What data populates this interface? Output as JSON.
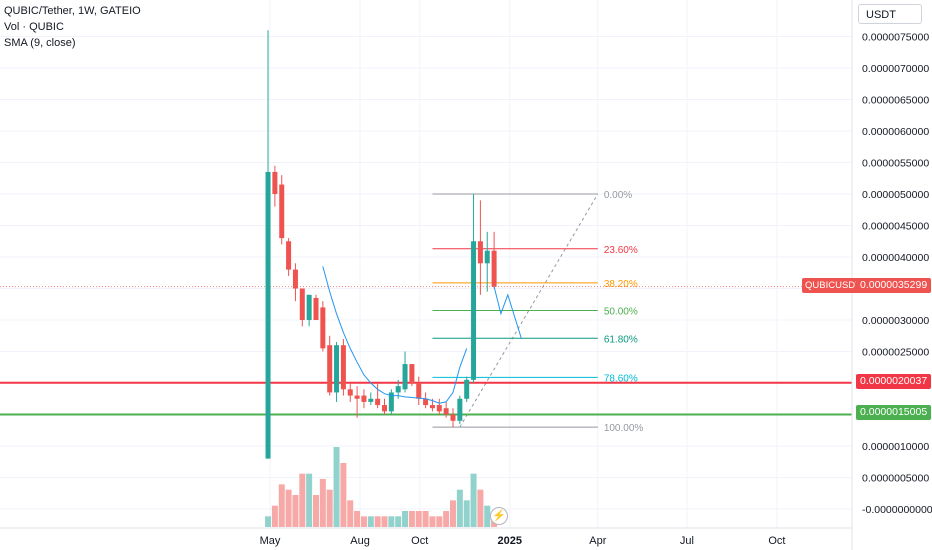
{
  "legend": {
    "symbol": "QUBIC/Tether, 1W, GATEIO",
    "volume": "Vol · QUBIC",
    "sma": "SMA (9, close)"
  },
  "currency": "USDT",
  "symbol_tag": "QUBICUSDT",
  "price_tags": {
    "last": "0.0000035299",
    "red_line": "0.0000020037",
    "green_line": "0.0000015005"
  },
  "flash_icon": "lightning-icon",
  "colors": {
    "up": "#26a69a",
    "down": "#ef5350",
    "red_line": "#f23645",
    "green_line": "#4caf50"
  },
  "chart_data": {
    "type": "candlestick",
    "y_axis": {
      "ticks": [
        {
          "value": 7.5e-06,
          "label": "0.0000075000"
        },
        {
          "value": 7e-06,
          "label": "0.0000070000"
        },
        {
          "value": 6.5e-06,
          "label": "0.0000065000"
        },
        {
          "value": 6e-06,
          "label": "0.0000060000"
        },
        {
          "value": 5.5e-06,
          "label": "0.0000055000"
        },
        {
          "value": 5e-06,
          "label": "0.0000050000"
        },
        {
          "value": 4.5e-06,
          "label": "0.0000045000"
        },
        {
          "value": 4e-06,
          "label": "0.0000040000"
        },
        {
          "value": 3.5e-06,
          "label": "0.0000035000"
        },
        {
          "value": 3e-06,
          "label": "0.0000030000"
        },
        {
          "value": 2.5e-06,
          "label": "0.0000025000"
        },
        {
          "value": 2e-06,
          "label": "0.0000020000"
        },
        {
          "value": 1.5e-06,
          "label": "0.0000015000"
        },
        {
          "value": 1e-06,
          "label": "0.0000010000"
        },
        {
          "value": 5e-07,
          "label": "0.0000005000"
        },
        {
          "value": 0.0,
          "label": "-0.0000000000"
        }
      ]
    },
    "x_axis": {
      "ticks": [
        {
          "date": "2024-05-01",
          "label": "May",
          "bold": false
        },
        {
          "date": "2024-08-01",
          "label": "Aug",
          "bold": false
        },
        {
          "date": "2024-10-01",
          "label": "Oct",
          "bold": false
        },
        {
          "date": "2025-01-01",
          "label": "2025",
          "bold": true
        },
        {
          "date": "2025-04-01",
          "label": "Apr",
          "bold": false
        },
        {
          "date": "2025-07-01",
          "label": "Jul",
          "bold": false
        },
        {
          "date": "2025-10-01",
          "label": "Oct",
          "bold": false
        }
      ]
    },
    "candles": [
      {
        "date": "2024-04-29",
        "o": 8e-07,
        "h": 7.6e-06,
        "l": 8e-07,
        "c": 5.35e-06,
        "v": 2e-07
      },
      {
        "date": "2024-05-06",
        "o": 5.35e-06,
        "h": 5.45e-06,
        "l": 4.8e-06,
        "c": 5e-06,
        "v": 4e-07
      },
      {
        "date": "2024-05-13",
        "o": 5.15e-06,
        "h": 5.3e-06,
        "l": 4.2e-06,
        "c": 4.3e-06,
        "v": 8e-07
      },
      {
        "date": "2024-05-20",
        "o": 4.25e-06,
        "h": 4.3e-06,
        "l": 3.7e-06,
        "c": 3.8e-06,
        "v": 7e-07
      },
      {
        "date": "2024-05-27",
        "o": 3.8e-06,
        "h": 3.9e-06,
        "l": 3.3e-06,
        "c": 3.5e-06,
        "v": 6e-07
      },
      {
        "date": "2024-06-03",
        "o": 3.5e-06,
        "h": 3.5e-06,
        "l": 2.9e-06,
        "c": 3e-06,
        "v": 1e-06
      },
      {
        "date": "2024-06-10",
        "o": 3e-06,
        "h": 3.4e-06,
        "l": 2.9e-06,
        "c": 3.4e-06,
        "v": 1e-06
      },
      {
        "date": "2024-06-17",
        "o": 3.35e-06,
        "h": 3.4e-06,
        "l": 3e-06,
        "c": 3e-06,
        "v": 6e-07
      },
      {
        "date": "2024-06-24",
        "o": 3.2e-06,
        "h": 3.3e-06,
        "l": 2.5e-06,
        "c": 2.55e-06,
        "v": 9e-07
      },
      {
        "date": "2024-07-01",
        "o": 2.6e-06,
        "h": 2.75e-06,
        "l": 1.8e-06,
        "c": 1.85e-06,
        "v": 7e-07
      },
      {
        "date": "2024-07-08",
        "o": 1.85e-06,
        "h": 2.65e-06,
        "l": 1.7e-06,
        "c": 2.6e-06,
        "v": 1.5e-06
      },
      {
        "date": "2024-07-15",
        "o": 2.6e-06,
        "h": 2.7e-06,
        "l": 1.8e-06,
        "c": 1.9e-06,
        "v": 1.2e-06
      },
      {
        "date": "2024-07-22",
        "o": 1.9e-06,
        "h": 2e-06,
        "l": 1.7e-06,
        "c": 1.8e-06,
        "v": 5e-07
      },
      {
        "date": "2024-07-29",
        "o": 1.8e-06,
        "h": 1.95e-06,
        "l": 1.45e-06,
        "c": 1.75e-06,
        "v": 3e-07
      },
      {
        "date": "2024-08-05",
        "o": 1.8e-06,
        "h": 1.9e-06,
        "l": 1.6e-06,
        "c": 1.7e-06,
        "v": 2e-07
      },
      {
        "date": "2024-08-12",
        "o": 1.7e-06,
        "h": 1.85e-06,
        "l": 1.65e-06,
        "c": 1.75e-06,
        "v": 2e-07
      },
      {
        "date": "2024-08-19",
        "o": 1.75e-06,
        "h": 2e-06,
        "l": 1.6e-06,
        "c": 1.65e-06,
        "v": 2e-07
      },
      {
        "date": "2024-08-26",
        "o": 1.65e-06,
        "h": 1.75e-06,
        "l": 1.5e-06,
        "c": 1.55e-06,
        "v": 2e-07
      },
      {
        "date": "2024-09-02",
        "o": 1.55e-06,
        "h": 1.9e-06,
        "l": 1.5e-06,
        "c": 1.85e-06,
        "v": 2e-07
      },
      {
        "date": "2024-09-09",
        "o": 1.85e-06,
        "h": 2.05e-06,
        "l": 1.75e-06,
        "c": 1.95e-06,
        "v": 2e-07
      },
      {
        "date": "2024-09-16",
        "o": 1.9e-06,
        "h": 2.5e-06,
        "l": 1.85e-06,
        "c": 2.3e-06,
        "v": 3e-07
      },
      {
        "date": "2024-09-23",
        "o": 2.3e-06,
        "h": 2.3e-06,
        "l": 1.95e-06,
        "c": 2e-06,
        "v": 3e-07
      },
      {
        "date": "2024-09-30",
        "o": 2e-06,
        "h": 2.1e-06,
        "l": 1.65e-06,
        "c": 1.75e-06,
        "v": 3e-07
      },
      {
        "date": "2024-10-07",
        "o": 1.75e-06,
        "h": 1.85e-06,
        "l": 1.6e-06,
        "c": 1.65e-06,
        "v": 3e-07
      },
      {
        "date": "2024-10-14",
        "o": 1.65e-06,
        "h": 1.75e-06,
        "l": 1.55e-06,
        "c": 1.6e-06,
        "v": 2e-07
      },
      {
        "date": "2024-10-21",
        "o": 1.65e-06,
        "h": 1.75e-06,
        "l": 1.5e-06,
        "c": 1.55e-06,
        "v": 2e-07
      },
      {
        "date": "2024-10-28",
        "o": 1.6e-06,
        "h": 1.7e-06,
        "l": 1.45e-06,
        "c": 1.5e-06,
        "v": 3e-07
      },
      {
        "date": "2024-11-04",
        "o": 1.5e-06,
        "h": 1.6e-06,
        "l": 1.3e-06,
        "c": 1.4e-06,
        "v": 5e-07
      },
      {
        "date": "2024-11-11",
        "o": 1.4e-06,
        "h": 1.8e-06,
        "l": 1.35e-06,
        "c": 1.75e-06,
        "v": 7e-07
      },
      {
        "date": "2024-11-18",
        "o": 1.75e-06,
        "h": 2.1e-06,
        "l": 1.7e-06,
        "c": 2.05e-06,
        "v": 5e-07
      },
      {
        "date": "2024-11-25",
        "o": 2.05e-06,
        "h": 5e-06,
        "l": 2e-06,
        "c": 4.25e-06,
        "v": 1e-06
      },
      {
        "date": "2024-12-02",
        "o": 4.25e-06,
        "h": 4.9e-06,
        "l": 3.4e-06,
        "c": 3.9e-06,
        "v": 7e-07
      },
      {
        "date": "2024-12-09",
        "o": 3.9e-06,
        "h": 4.4e-06,
        "l": 3.45e-06,
        "c": 4.1e-06,
        "v": 4e-07
      },
      {
        "date": "2024-12-16",
        "o": 4.1e-06,
        "h": 4.4e-06,
        "l": 3.5e-06,
        "c": 3.53e-06,
        "v": 2e-07
      }
    ],
    "sma": {
      "name": "SMA (9, close)",
      "start_date": "2024-06-24",
      "values": [
        3.85e-06,
        3.45e-06,
        3.1e-06,
        2.8e-06,
        2.55e-06,
        2.33e-06,
        2.13e-06,
        2e-06,
        1.9e-06,
        1.83e-06,
        1.8e-06,
        1.8e-06,
        1.78e-06,
        1.77e-06,
        1.76e-06,
        1.75e-06,
        1.72e-06,
        1.68e-06,
        1.7e-06,
        1.85e-06,
        2.25e-06,
        2.55e-06
      ]
    },
    "projection_path": [
      {
        "date": "2024-12-16",
        "value": 3.53e-06
      },
      {
        "date": "2024-12-23",
        "value": 3.1e-06
      },
      {
        "date": "2024-12-30",
        "value": 3.4e-06
      },
      {
        "date": "2025-01-13",
        "value": 2.7e-06
      }
    ],
    "fibonacci": {
      "start": {
        "date": "2024-10-14",
        "value": 1.3e-06
      },
      "end": {
        "date": "2025-04-01",
        "value": 5e-06
      },
      "levels": [
        {
          "label": "0.00%",
          "value": 5e-06,
          "color": "#9598a1"
        },
        {
          "label": "23.60%",
          "value": 4.13e-06,
          "color": "#f23645"
        },
        {
          "label": "38.20%",
          "value": 3.59e-06,
          "color": "#ff9800"
        },
        {
          "label": "50.00%",
          "value": 3.15e-06,
          "color": "#4caf50"
        },
        {
          "label": "61.80%",
          "value": 2.71e-06,
          "color": "#089981"
        },
        {
          "label": "78.60%",
          "value": 2.09e-06,
          "color": "#00bcd4"
        },
        {
          "label": "100.00%",
          "value": 1.3e-06,
          "color": "#9598a1"
        }
      ]
    },
    "horizontal_lines": [
      {
        "value": 2.0037e-06,
        "color": "#f23645"
      },
      {
        "value": 1.5005e-06,
        "color": "#4caf50"
      }
    ],
    "last_price": 3.5299e-06,
    "legend_placement": "top-left",
    "grid": true
  }
}
